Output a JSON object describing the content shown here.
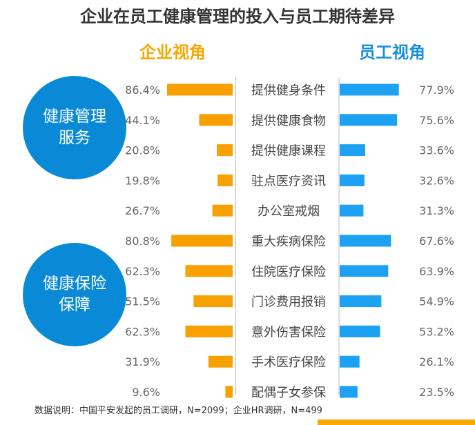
{
  "title": "企业在员工健康管理的投入与员工期待差异",
  "left_header": "企业视角",
  "right_header": "员工视角",
  "groups": [
    {
      "label": "健康管理服务",
      "color": "#0a8ad6"
    },
    {
      "label": "健康保险保障",
      "color": "#0a8ad6"
    }
  ],
  "footnote": "数据说明：中国平安发起的员工调研，N=2099；企业HR调研，N=499",
  "colors": {
    "enterprise": "#f7a000",
    "employee": "#1da1f2",
    "accent_bar": "#f7a800"
  },
  "chart_data": {
    "type": "bar",
    "categories": [
      "提供健身条件",
      "提供健康食物",
      "提供健康课程",
      "驻点医疗资讯",
      "办公室戒烟",
      "重大疾病保险",
      "住院医疗保险",
      "门诊费用报销",
      "意外伤害保险",
      "手术医疗保险",
      "配偶子女参保"
    ],
    "series": [
      {
        "name": "企业视角",
        "values": [
          86.4,
          44.1,
          20.8,
          19.8,
          26.7,
          80.8,
          62.3,
          51.5,
          62.3,
          31.9,
          9.6
        ]
      },
      {
        "name": "员工视角",
        "values": [
          77.9,
          75.6,
          33.6,
          32.6,
          31.3,
          67.6,
          63.9,
          54.9,
          53.2,
          26.1,
          23.5
        ]
      }
    ],
    "value_labels_left": [
      "86.4%",
      "44.1%",
      "20.8%",
      "19.8%",
      "26.7%",
      "80.8%",
      "62.3%",
      "51.5%",
      "62.3%",
      "31.9%",
      "9.6%"
    ],
    "value_labels_right": [
      "77.9%",
      "75.6%",
      "33.6%",
      "32.6%",
      "31.3%",
      "67.6%",
      "63.9%",
      "54.9%",
      "53.2%",
      "26.1%",
      "23.5%"
    ]
  }
}
